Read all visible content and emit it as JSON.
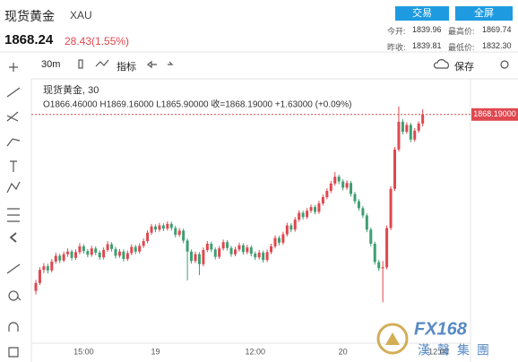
{
  "header": {
    "name": "现货黄金",
    "symbol": "XAU",
    "buttons": [
      "交易",
      "全屏"
    ],
    "price": "1868.24",
    "change": "28.43(1.55%)",
    "stats": [
      {
        "label": "今开:",
        "value": "1839.96"
      },
      {
        "label": "最高价:",
        "value": "1869.74"
      },
      {
        "label": "昨收:",
        "value": "1839.81"
      },
      {
        "label": "最低价:",
        "value": "1832.30"
      }
    ]
  },
  "toolbar": {
    "interval": "30m",
    "indicators": "指标",
    "save": "保存"
  },
  "chart_data": {
    "type": "candlestick",
    "legend_title": "现货黄金, 30",
    "legend_ohlc": "O1866.46000  H1869.16000  L1865.90000  收=1868.19000  +1.63000 (+0.09%)",
    "up_color": "#e0474f",
    "down_color": "#3e9f72",
    "ylim": [
      1824.5,
      1875
    ],
    "last_price": {
      "value": 1868.19,
      "label": "1868.19000"
    },
    "last_price_color": "#e0474f",
    "x_labels": [
      {
        "value": 12,
        "label": "15:00"
      },
      {
        "value": 30,
        "label": "19"
      },
      {
        "value": 55,
        "label": "12:00"
      },
      {
        "value": 77,
        "label": "20"
      },
      {
        "value": 101,
        "label": "12:00"
      }
    ],
    "candles": [
      [
        1834.5,
        1836.6,
        1833.8,
        1836.0
      ],
      [
        1836.0,
        1839.0,
        1835.6,
        1838.5
      ],
      [
        1838.5,
        1839.8,
        1837.9,
        1839.2
      ],
      [
        1839.2,
        1839.7,
        1837.8,
        1838.4
      ],
      [
        1838.4,
        1840.6,
        1838.0,
        1840.1
      ],
      [
        1840.1,
        1841.8,
        1839.7,
        1841.2
      ],
      [
        1841.2,
        1841.6,
        1839.8,
        1840.3
      ],
      [
        1840.3,
        1842.0,
        1840.0,
        1841.5
      ],
      [
        1841.5,
        1842.6,
        1841.0,
        1842.0
      ],
      [
        1842.0,
        1842.4,
        1840.3,
        1840.8
      ],
      [
        1840.8,
        1842.4,
        1840.4,
        1841.9
      ],
      [
        1841.9,
        1843.6,
        1841.5,
        1843.0
      ],
      [
        1843.0,
        1843.4,
        1841.6,
        1842.1
      ],
      [
        1842.1,
        1842.5,
        1840.9,
        1841.4
      ],
      [
        1841.4,
        1843.1,
        1841.0,
        1842.6
      ],
      [
        1842.6,
        1843.0,
        1841.3,
        1841.8
      ],
      [
        1841.8,
        1842.2,
        1840.4,
        1840.9
      ],
      [
        1840.9,
        1842.8,
        1840.5,
        1842.3
      ],
      [
        1842.3,
        1844.0,
        1841.9,
        1843.4
      ],
      [
        1843.4,
        1843.8,
        1842.0,
        1842.5
      ],
      [
        1842.5,
        1842.9,
        1840.7,
        1841.2
      ],
      [
        1841.2,
        1842.5,
        1840.8,
        1842.0
      ],
      [
        1842.0,
        1842.4,
        1840.1,
        1840.6
      ],
      [
        1840.6,
        1842.2,
        1840.2,
        1841.7
      ],
      [
        1841.7,
        1843.4,
        1841.3,
        1842.9
      ],
      [
        1842.9,
        1843.3,
        1841.5,
        1842.0
      ],
      [
        1842.0,
        1843.6,
        1841.6,
        1843.1
      ],
      [
        1843.1,
        1844.5,
        1842.7,
        1844.0
      ],
      [
        1844.0,
        1846.1,
        1843.6,
        1845.6
      ],
      [
        1845.6,
        1847.3,
        1845.2,
        1846.8
      ],
      [
        1846.8,
        1847.2,
        1845.7,
        1846.2
      ],
      [
        1846.2,
        1847.5,
        1845.8,
        1847.0
      ],
      [
        1847.0,
        1847.4,
        1845.9,
        1846.4
      ],
      [
        1846.4,
        1847.8,
        1846.0,
        1847.3
      ],
      [
        1847.3,
        1847.7,
        1846.0,
        1846.5
      ],
      [
        1846.5,
        1846.9,
        1844.7,
        1845.2
      ],
      [
        1845.2,
        1846.5,
        1844.8,
        1846.0
      ],
      [
        1846.0,
        1846.4,
        1843.6,
        1844.1
      ],
      [
        1844.1,
        1844.5,
        1836.5,
        1842.0
      ],
      [
        1842.0,
        1842.4,
        1839.7,
        1840.2
      ],
      [
        1840.2,
        1842.0,
        1839.8,
        1841.5
      ],
      [
        1841.5,
        1841.9,
        1837.5,
        1839.6
      ],
      [
        1839.6,
        1842.8,
        1839.2,
        1842.3
      ],
      [
        1842.3,
        1844.0,
        1841.9,
        1843.5
      ],
      [
        1843.5,
        1843.9,
        1841.9,
        1842.4
      ],
      [
        1842.4,
        1842.8,
        1840.5,
        1841.0
      ],
      [
        1841.0,
        1843.1,
        1840.6,
        1842.6
      ],
      [
        1842.6,
        1844.3,
        1842.2,
        1843.8
      ],
      [
        1843.8,
        1844.2,
        1842.2,
        1842.7
      ],
      [
        1842.7,
        1843.1,
        1841.0,
        1841.5
      ],
      [
        1841.5,
        1842.9,
        1841.1,
        1842.4
      ],
      [
        1842.4,
        1843.7,
        1842.0,
        1843.2
      ],
      [
        1843.2,
        1843.6,
        1841.4,
        1841.9
      ],
      [
        1841.9,
        1843.3,
        1841.5,
        1842.8
      ],
      [
        1842.8,
        1843.2,
        1841.1,
        1841.6
      ],
      [
        1841.6,
        1842.0,
        1840.4,
        1840.9
      ],
      [
        1840.9,
        1842.3,
        1840.5,
        1841.8
      ],
      [
        1841.8,
        1842.2,
        1839.9,
        1840.4
      ],
      [
        1840.4,
        1842.4,
        1840.0,
        1841.9
      ],
      [
        1841.9,
        1843.5,
        1841.5,
        1843.0
      ],
      [
        1843.0,
        1845.1,
        1842.6,
        1844.6
      ],
      [
        1844.6,
        1845.0,
        1843.2,
        1843.7
      ],
      [
        1843.7,
        1845.8,
        1843.3,
        1845.3
      ],
      [
        1845.3,
        1847.5,
        1844.9,
        1847.0
      ],
      [
        1847.0,
        1847.4,
        1845.7,
        1846.2
      ],
      [
        1846.2,
        1848.6,
        1845.8,
        1848.1
      ],
      [
        1848.1,
        1849.9,
        1847.7,
        1849.4
      ],
      [
        1849.4,
        1849.8,
        1848.1,
        1848.6
      ],
      [
        1848.6,
        1850.3,
        1848.2,
        1849.8
      ],
      [
        1849.8,
        1851.0,
        1849.4,
        1850.5
      ],
      [
        1850.5,
        1850.9,
        1849.1,
        1849.6
      ],
      [
        1849.6,
        1851.7,
        1849.2,
        1851.2
      ],
      [
        1851.2,
        1852.9,
        1850.8,
        1852.4
      ],
      [
        1852.4,
        1854.1,
        1852.0,
        1853.6
      ],
      [
        1853.6,
        1855.5,
        1853.2,
        1855.0
      ],
      [
        1855.0,
        1857.2,
        1854.6,
        1856.3
      ],
      [
        1856.3,
        1856.7,
        1854.9,
        1855.4
      ],
      [
        1855.4,
        1855.8,
        1853.7,
        1854.2
      ],
      [
        1854.2,
        1855.6,
        1853.8,
        1855.1
      ],
      [
        1855.1,
        1855.5,
        1852.5,
        1853.0
      ],
      [
        1853.0,
        1853.4,
        1851.1,
        1851.6
      ],
      [
        1851.6,
        1852.0,
        1849.8,
        1850.3
      ],
      [
        1850.3,
        1850.7,
        1848.4,
        1848.9
      ],
      [
        1848.9,
        1849.3,
        1845.7,
        1846.2
      ],
      [
        1846.2,
        1846.6,
        1843.0,
        1843.5
      ],
      [
        1843.5,
        1843.9,
        1839.5,
        1840.0
      ],
      [
        1840.0,
        1840.4,
        1838.3,
        1838.8
      ],
      [
        1838.8,
        1840.2,
        1832.3,
        1839.0
      ],
      [
        1839.0,
        1847.0,
        1838.6,
        1846.5
      ],
      [
        1846.5,
        1854.5,
        1846.1,
        1854.0
      ],
      [
        1854.0,
        1862.0,
        1853.6,
        1861.5
      ],
      [
        1861.5,
        1869.74,
        1861.1,
        1866.8
      ],
      [
        1866.8,
        1867.3,
        1864.4,
        1864.9
      ],
      [
        1864.9,
        1866.7,
        1864.5,
        1866.2
      ],
      [
        1866.2,
        1866.6,
        1862.9,
        1863.4
      ],
      [
        1863.4,
        1865.6,
        1863.0,
        1865.1
      ],
      [
        1865.1,
        1866.9,
        1864.7,
        1866.46
      ],
      [
        1866.46,
        1869.16,
        1865.9,
        1868.19
      ]
    ]
  },
  "watermark": {
    "logo": "FX168",
    "company": "漢聲集團"
  }
}
